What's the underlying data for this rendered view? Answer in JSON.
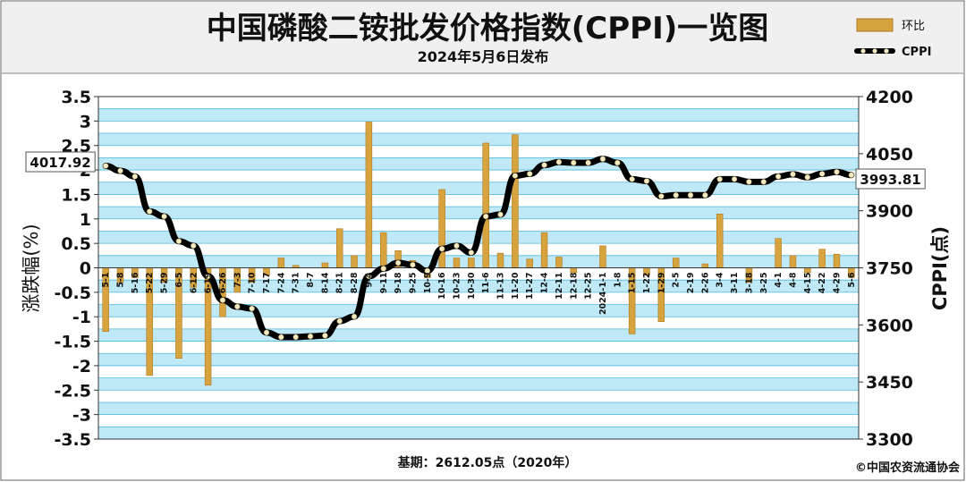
{
  "header": {
    "title": "中国磷酸二铵批发价格指数(CPPI)一览图",
    "subtitle": "2024年5月6日发布"
  },
  "footer": {
    "base_note": "基期：2612.05点（2020年）",
    "copyright": "©中国农资流通协会"
  },
  "colors": {
    "bar_fill": "#d6a33f",
    "bar_edge": "#b07a1f",
    "line": "#000000",
    "marker": "#f5e9c0",
    "plot_bg": "#ffffff",
    "grid_band": "#bfe9f7",
    "grid_line": "#4fb9dd",
    "header_bg": "#f0f0f0"
  },
  "chart_data": {
    "type": "bar+line",
    "categories": [
      "5-1",
      "5-8",
      "5-16",
      "5-22",
      "5-29",
      "6-5",
      "6-12",
      "6-19",
      "6-26",
      "7-3",
      "7-10",
      "7-17",
      "7-24",
      "7-31",
      "8-7",
      "8-14",
      "8-21",
      "8-28",
      "9-4",
      "9-11",
      "9-18",
      "9-25",
      "10-9",
      "10-16",
      "10-23",
      "10-30",
      "11-6",
      "11-13",
      "11-20",
      "11-27",
      "12-4",
      "12-11",
      "12-18",
      "12-25",
      "2024-1-1",
      "1-8",
      "1-15",
      "1-22",
      "1-29",
      "2-5",
      "2-19",
      "2-26",
      "3-4",
      "3-11",
      "3-18",
      "3-25",
      "4-1",
      "4-8",
      "4-15",
      "4-22",
      "4-29",
      "5-6"
    ],
    "series": [
      {
        "name": "环比",
        "axis": "left",
        "type": "bar",
        "values": [
          -1.3,
          -0.3,
          -0.2,
          -2.2,
          -0.3,
          -1.85,
          -0.4,
          -2.4,
          -1.0,
          -0.5,
          -0.3,
          -0.15,
          0.2,
          0.05,
          0.0,
          0.1,
          0.8,
          0.25,
          2.98,
          0.72,
          0.35,
          0.15,
          -0.2,
          1.6,
          0.2,
          0.2,
          2.55,
          0.3,
          2.72,
          0.18,
          0.72,
          0.22,
          -0.1,
          0.0,
          0.45,
          0.0,
          -1.35,
          -0.15,
          -1.1,
          0.2,
          0.0,
          0.08,
          1.1,
          0.0,
          -0.3,
          0.0,
          0.6,
          0.25,
          -0.1,
          0.38,
          0.28,
          -0.2
        ]
      },
      {
        "name": "CPPI",
        "axis": "right",
        "type": "line",
        "values": [
          4017.92,
          4005,
          3990,
          3898,
          3885,
          3820,
          3808,
          3728,
          3665,
          3648,
          3643,
          3580,
          3568,
          3568,
          3570,
          3572,
          3610,
          3622,
          3728,
          3748,
          3763,
          3758,
          3742,
          3800,
          3808,
          3790,
          3885,
          3890,
          3992,
          3997,
          4020,
          4028,
          4026,
          4026,
          4036,
          4026,
          3983,
          3978,
          3938,
          3941,
          3941,
          3941,
          3983,
          3983,
          3976,
          3976,
          3990,
          3996,
          3988,
          3997,
          4002,
          3993.81
        ]
      }
    ],
    "start_label": "4017.92",
    "end_label": "3993.81",
    "ylabel_left": "涨跌幅(%)",
    "ylabel_right": "CPPI(点)",
    "ylim_left": [
      -3.5,
      3.5
    ],
    "ylim_right": [
      3300,
      4200
    ],
    "yticks_left": [
      "3.5",
      "3",
      "2.5",
      "2",
      "1.5",
      "1",
      "0.5",
      "0",
      "-0.5",
      "-1",
      "-1.5",
      "-2",
      "-2.5",
      "-3",
      "-3.5"
    ],
    "yticks_right": [
      "4200",
      "4050",
      "3900",
      "3750",
      "3600",
      "3450",
      "3300"
    ],
    "legend_position": "top-right",
    "grid": true
  }
}
